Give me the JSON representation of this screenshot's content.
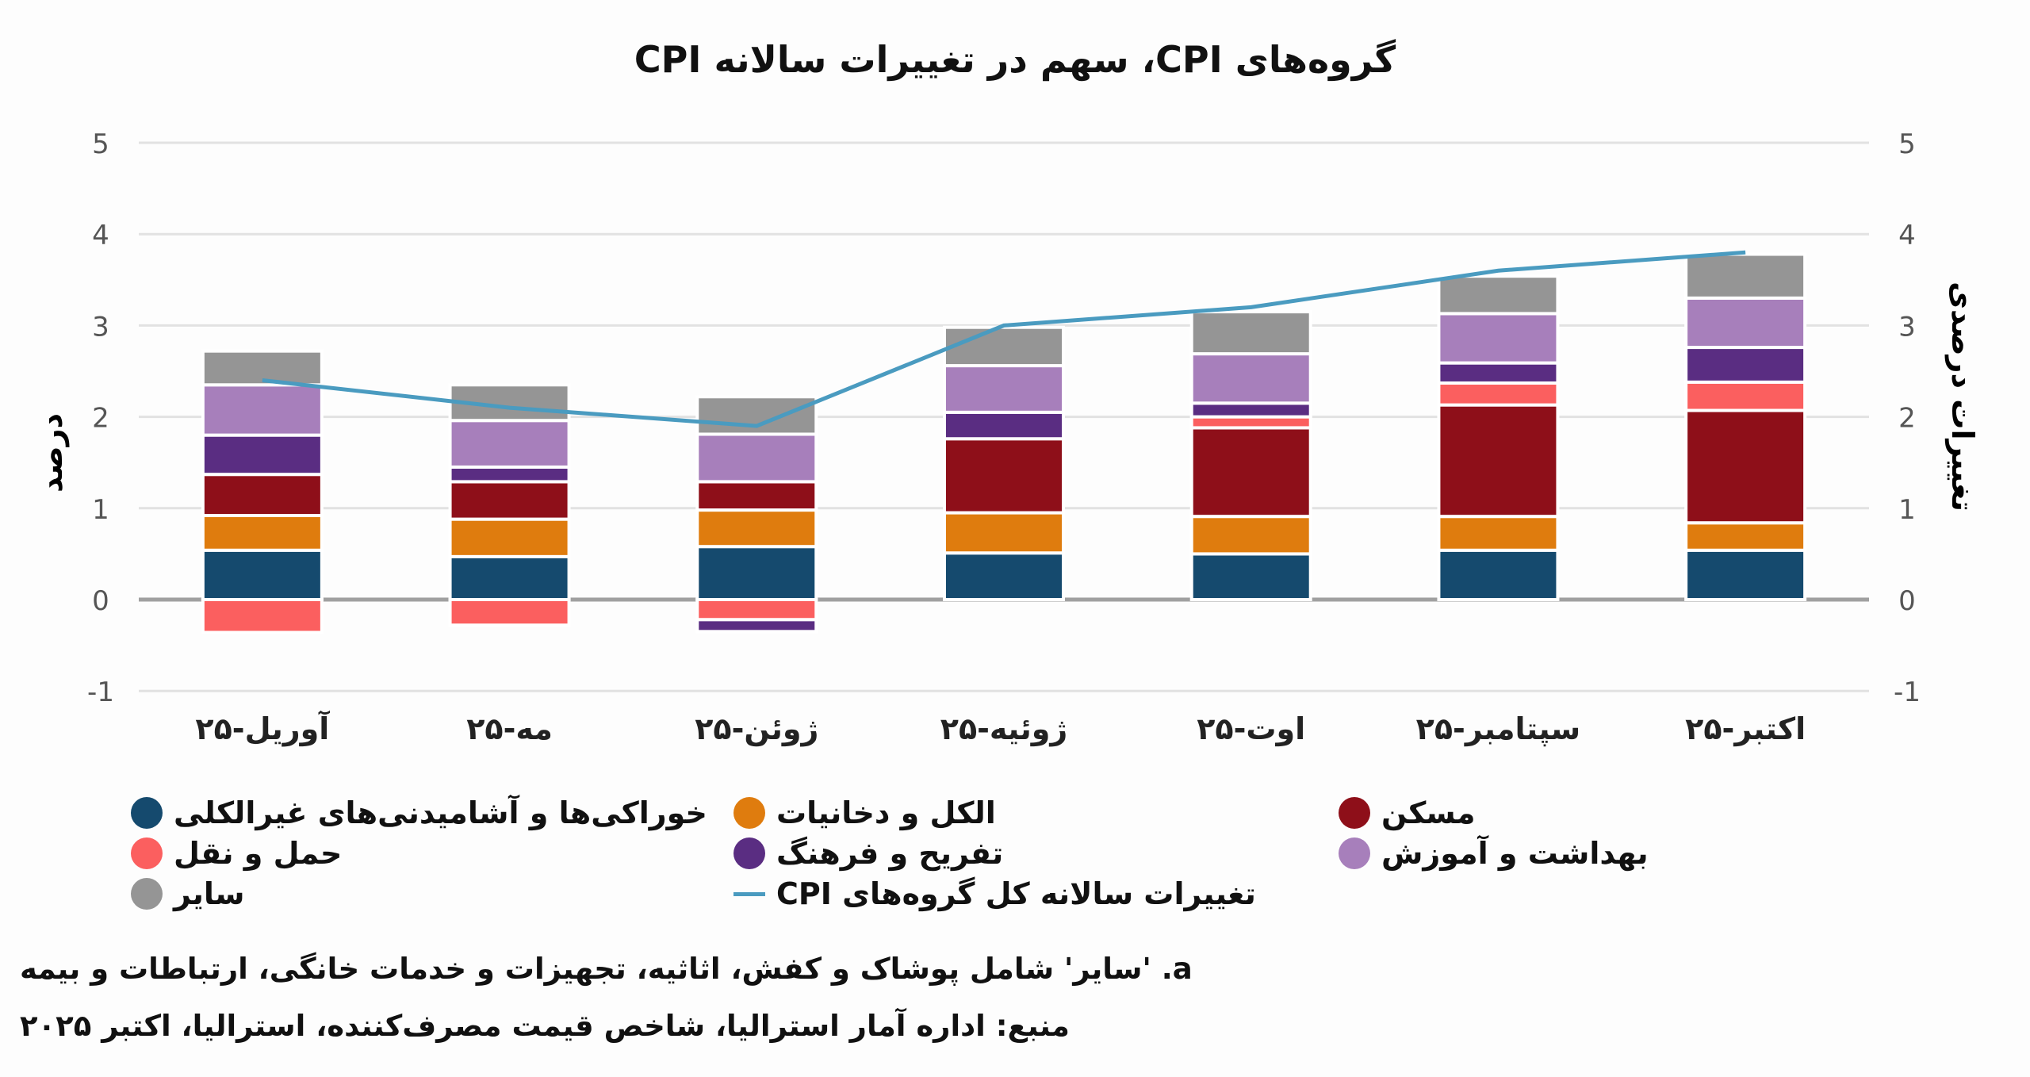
{
  "chart_data": {
    "type": "bar",
    "stacked": true,
    "title": "گروه‌های CPI، سهم در تغییرات سالانه CPI",
    "ylabel_left": "درصد",
    "ylabel_right": "تغییرات درصدی",
    "ylim": [
      -1,
      5
    ],
    "yticks": [
      "-1",
      "0",
      "1",
      "2",
      "3",
      "4",
      "5"
    ],
    "grid": true,
    "legend_position": "bottom",
    "categories": [
      "آوریل-۲۵",
      "مه-۲۵",
      "ژوئن-۲۵",
      "ژوئیه-۲۵",
      "اوت-۲۵",
      "سپتامبر-۲۵",
      "اکتبر-۲۵"
    ],
    "series": [
      {
        "name": "خوراکی‌ها و آشامیدنی‌های غیرالکلی",
        "color": "#154a6e",
        "values": [
          0.54,
          0.47,
          0.58,
          0.51,
          0.5,
          0.54,
          0.54
        ]
      },
      {
        "name": "الکل و دخانیات",
        "color": "#df7c0e",
        "values": [
          0.38,
          0.41,
          0.4,
          0.44,
          0.41,
          0.37,
          0.3
        ]
      },
      {
        "name": "مسکن",
        "color": "#8e0f19",
        "values": [
          0.45,
          0.41,
          0.31,
          0.81,
          0.97,
          1.22,
          1.23
        ]
      },
      {
        "name": "حمل و نقل",
        "color": "#fb5f5f",
        "values": [
          -0.36,
          -0.28,
          -0.22,
          0.0,
          0.12,
          0.24,
          0.31
        ]
      },
      {
        "name": "تفریح و فرهنگ",
        "color": "#5a2d82",
        "values": [
          0.43,
          0.16,
          -0.13,
          0.29,
          0.15,
          0.22,
          0.38
        ]
      },
      {
        "name": "بهداشت و آموزش",
        "color": "#a77fbb",
        "values": [
          0.55,
          0.51,
          0.52,
          0.51,
          0.54,
          0.54,
          0.54
        ]
      },
      {
        "name": "سایر",
        "color": "#959595",
        "values": [
          0.37,
          0.39,
          0.41,
          0.42,
          0.46,
          0.41,
          0.48
        ]
      }
    ],
    "line": {
      "name": "تغییرات سالانه کل گروه‌های CPI",
      "color": "#4a9bc0",
      "values": [
        2.4,
        2.1,
        1.9,
        3.0,
        3.2,
        3.6,
        3.8
      ]
    }
  },
  "footnotes": {
    "note_a": "a. 'سایر' شامل پوشاک و کفش، اثاثیه، تجهیزات و خدمات خانگی، ارتباطات و بیمه",
    "source": "منبع: اداره آمار استرالیا، شاخص قیمت مصرف‌کننده، استرالیا، اکتبر ۲۰۲۵"
  }
}
